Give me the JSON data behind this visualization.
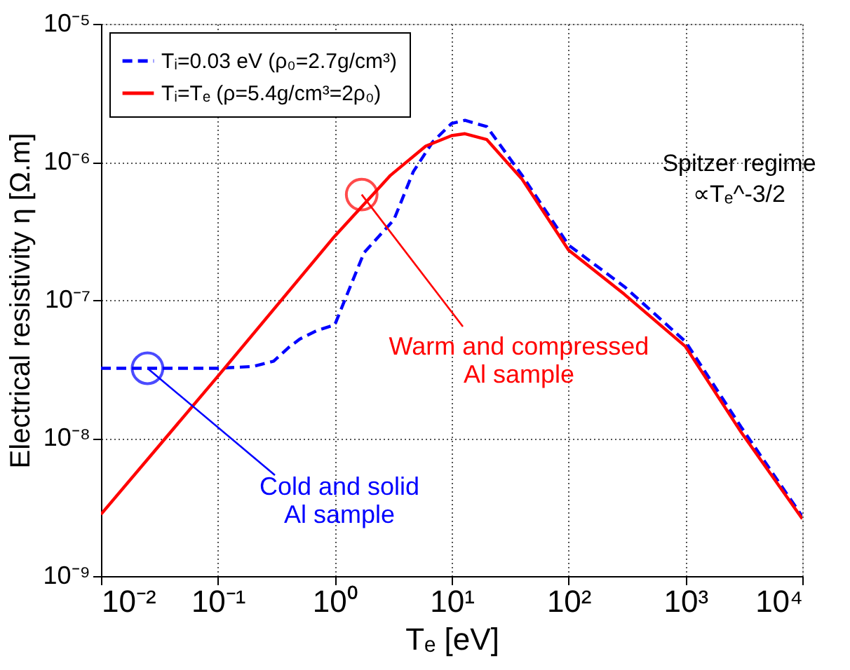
{
  "chart_data": {
    "type": "line",
    "xlabel": "Tₑ [eV]",
    "ylabel": "Electrical resistivity η [Ω.m]",
    "log": "xy",
    "grid": true,
    "legend": "top left",
    "marker": "none",
    "xlim": [
      0.01,
      10000
    ],
    "ylim": [
      1e-09,
      1e-05
    ],
    "xticks": [
      {
        "value": 0.01,
        "label": "10⁻²"
      },
      {
        "value": 0.1,
        "label": "10⁻¹"
      },
      {
        "value": 1,
        "label": "10⁰"
      },
      {
        "value": 10,
        "label": "10¹"
      },
      {
        "value": 100,
        "label": "10²"
      },
      {
        "value": 1000,
        "label": "10³"
      },
      {
        "value": 10000,
        "label": "10⁴"
      }
    ],
    "yticks": [
      {
        "value": 1e-09,
        "label": "10⁻⁹"
      },
      {
        "value": 1e-08,
        "label": "10⁻⁸"
      },
      {
        "value": 1e-07,
        "label": "10⁻⁷"
      },
      {
        "value": 1e-06,
        "label": "10⁻⁶"
      },
      {
        "value": 1e-05,
        "label": "10⁻⁵"
      }
    ],
    "series": [
      {
        "name": "Tᵢ=0.03 eV (ρ₀=2.7g/cm³)",
        "color": "#0000ff",
        "line_style": "dashed",
        "x": [
          0.01,
          0.05,
          0.1,
          0.2,
          0.3,
          0.4,
          0.5,
          0.7,
          1,
          1.78,
          3.2,
          4.7,
          6.9,
          10,
          13,
          20,
          40,
          100,
          300,
          1000,
          3000,
          10000
        ],
        "values": [
          3.2e-08,
          3.2e-08,
          3.2e-08,
          3.3e-08,
          3.6e-08,
          4.5e-08,
          5.2e-08,
          6e-08,
          6.6e-08,
          2.2e-07,
          3.8e-07,
          8.5e-07,
          1.4e-06,
          1.9e-06,
          2e-06,
          1.8e-06,
          8e-07,
          2.5e-07,
          1.25e-07,
          5e-08,
          1.2e-08,
          2.7e-09
        ]
      },
      {
        "name": "Tᵢ=Tₑ (ρ=5.4g/cm³=2ρ₀)",
        "color": "#ff0000",
        "line_style": "solid",
        "x": [
          0.01,
          0.1,
          1,
          3,
          6,
          10,
          13,
          20,
          40,
          100,
          300,
          1000,
          3000,
          10000
        ],
        "values": [
          2.8e-09,
          2.8e-08,
          2.9e-07,
          8e-07,
          1.3e-06,
          1.55e-06,
          1.6e-06,
          1.45e-06,
          7.5e-07,
          2.3e-07,
          1.1e-07,
          4.6e-08,
          1.1e-08,
          2.6e-09
        ]
      }
    ],
    "annotations": [
      {
        "text": "Cold and solid\nAl sample",
        "x": 0.025,
        "y": 3.2e-08
      },
      {
        "text": "Warm and compressed\nAl sample",
        "x": 1.7,
        "y": 5.8e-07
      },
      "Spitzer regime\n∝Tₑ^-3/2"
    ]
  }
}
